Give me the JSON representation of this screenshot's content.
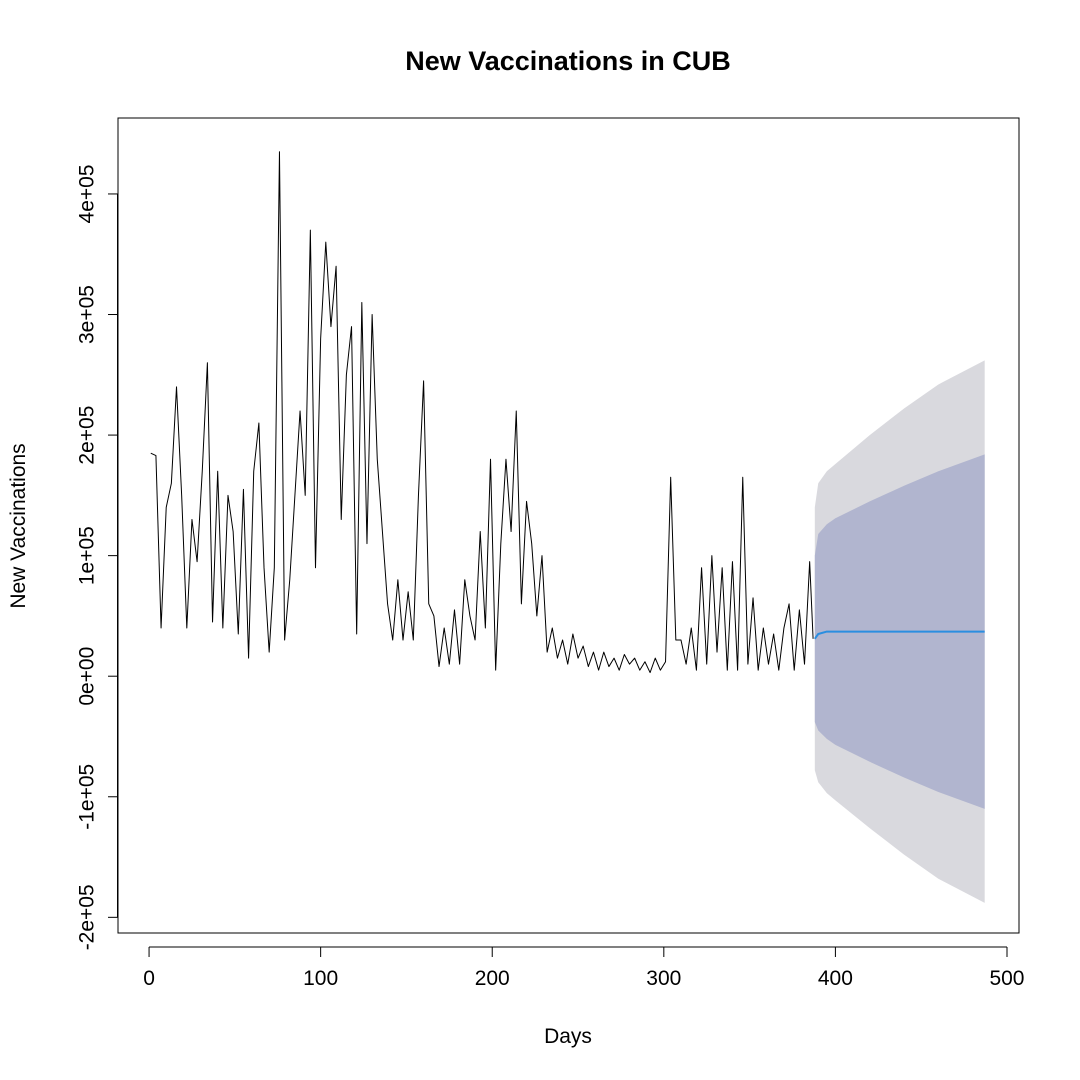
{
  "chart_data": {
    "type": "line",
    "title": "New Vaccinations in CUB",
    "x_label": "Days",
    "y_label": "New Vaccinations",
    "xlim": [
      -18.1,
      507
    ],
    "ylim": [
      -213000,
      463000
    ],
    "xticks": [
      0,
      100,
      200,
      300,
      400,
      500
    ],
    "yticks": [
      {
        "value": -200000,
        "label": "-2e+05"
      },
      {
        "value": -100000,
        "label": "-1e+05"
      },
      {
        "value": 0,
        "label": "0e+00"
      },
      {
        "value": 100000,
        "label": "1e+05"
      },
      {
        "value": 200000,
        "label": "2e+05"
      },
      {
        "value": 300000,
        "label": "3e+05"
      },
      {
        "value": 400000,
        "label": "4e+05"
      }
    ],
    "bands": [
      {
        "color": "#d9d9de",
        "x": [
          388,
          390,
          395,
          400,
          420,
          440,
          460,
          487
        ],
        "lower": [
          -78000,
          -88000,
          -97000,
          -103000,
          -126000,
          -148000,
          -168000,
          -188000
        ],
        "upper": [
          140000,
          160000,
          170000,
          176000,
          200000,
          222000,
          242000,
          262000
        ]
      },
      {
        "color": "#b1b5cf",
        "x": [
          388,
          390,
          395,
          400,
          420,
          440,
          460,
          487
        ],
        "lower": [
          -38000,
          -45000,
          -52000,
          -57000,
          -71000,
          -84000,
          -96000,
          -110000
        ],
        "upper": [
          100000,
          118000,
          126000,
          131000,
          145000,
          158000,
          170000,
          184000
        ]
      }
    ],
    "series": [
      {
        "color": "#000000",
        "x": [
          1,
          4,
          7,
          10,
          13,
          16,
          19,
          22,
          25,
          28,
          31,
          34,
          37,
          40,
          43,
          46,
          49,
          52,
          55,
          58,
          61,
          64,
          67,
          70,
          73,
          76,
          79,
          82,
          85,
          88,
          91,
          94,
          97,
          100,
          103,
          106,
          109,
          112,
          115,
          118,
          121,
          124,
          127,
          130,
          133,
          136,
          139,
          142,
          145,
          148,
          151,
          154,
          157,
          160,
          163,
          166,
          169,
          172,
          175,
          178,
          181,
          184,
          187,
          190,
          193,
          196,
          199,
          202,
          205,
          208,
          211,
          214,
          217,
          220,
          223,
          226,
          229,
          232,
          235,
          238,
          241,
          244,
          247,
          250,
          253,
          256,
          259,
          262,
          265,
          268,
          271,
          274,
          277,
          280,
          283,
          286,
          289,
          292,
          295,
          298,
          301,
          304,
          307,
          310,
          313,
          316,
          319,
          322,
          325,
          328,
          331,
          334,
          337,
          340,
          343,
          346,
          349,
          352,
          355,
          358,
          361,
          364,
          367,
          370,
          373,
          376,
          379,
          382,
          385,
          387
        ],
        "values": [
          185000,
          183000,
          40000,
          140000,
          160000,
          240000,
          150000,
          40000,
          130000,
          95000,
          170000,
          260000,
          45000,
          170000,
          40000,
          150000,
          120000,
          35000,
          155000,
          15000,
          170000,
          210000,
          90000,
          20000,
          90000,
          435000,
          30000,
          80000,
          150000,
          220000,
          150000,
          370000,
          90000,
          280000,
          360000,
          290000,
          340000,
          130000,
          250000,
          290000,
          35000,
          310000,
          110000,
          300000,
          180000,
          120000,
          60000,
          30000,
          80000,
          30000,
          70000,
          30000,
          150000,
          245000,
          60000,
          50000,
          8000,
          40000,
          10000,
          55000,
          10000,
          80000,
          50000,
          30000,
          120000,
          40000,
          180000,
          5000,
          110000,
          180000,
          120000,
          220000,
          60000,
          145000,
          110000,
          50000,
          100000,
          20000,
          40000,
          15000,
          30000,
          10000,
          35000,
          15000,
          25000,
          8000,
          20000,
          5000,
          20000,
          8000,
          15000,
          5000,
          18000,
          10000,
          15000,
          5000,
          12000,
          3000,
          15000,
          5000,
          12000,
          165000,
          30000,
          30000,
          10000,
          40000,
          5000,
          90000,
          10000,
          100000,
          20000,
          90000,
          5000,
          95000,
          5000,
          165000,
          10000,
          65000,
          5000,
          40000,
          10000,
          35000,
          5000,
          40000,
          60000,
          5000,
          55000,
          10000,
          95000,
          31000
        ]
      },
      {
        "color": "#2a8ee0",
        "x": [
          388,
          390,
          395,
          400,
          420,
          440,
          460,
          487
        ],
        "values": [
          31000,
          35000,
          37000,
          37000,
          37000,
          37000,
          37000,
          37000
        ]
      }
    ]
  }
}
